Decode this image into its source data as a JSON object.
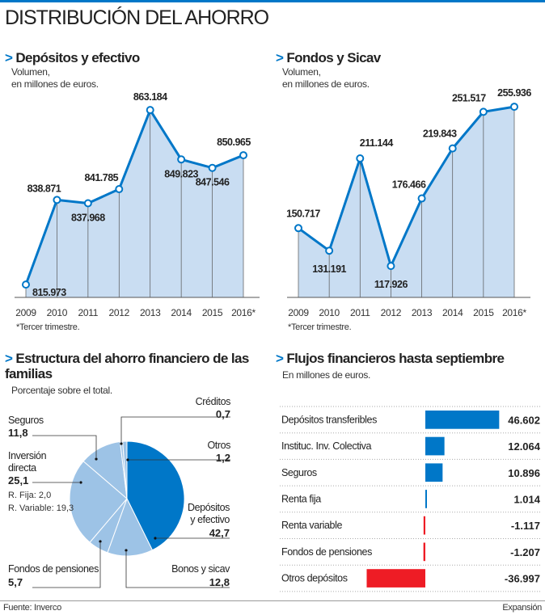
{
  "title": "DISTRIBUCIÓN DEL AHORRO",
  "accent": "#0077c8",
  "footer": {
    "source_label": "Fuente:",
    "source": "Inverco",
    "brand": "Expansión"
  },
  "chart_data": [
    {
      "type": "area",
      "title": "Depósitos y efectivo",
      "subtitle": [
        "Volumen,",
        "en millones de euros."
      ],
      "categories": [
        "2009",
        "2010",
        "2011",
        "2012",
        "2013",
        "2014",
        "2015",
        "2016*"
      ],
      "values": [
        815.973,
        838.871,
        837.968,
        841.785,
        863.184,
        849.823,
        847.546,
        850.965
      ],
      "labels": [
        "815.973",
        "838.871",
        "837.968",
        "841.785",
        "863.184",
        "849.823",
        "847.546",
        "850.965"
      ],
      "ylim": [
        812.5,
        870
      ],
      "note": "*Tercer trimestre.",
      "colors": {
        "line": "#0077c8",
        "fill": "#c9ddf2"
      }
    },
    {
      "type": "area",
      "title": "Fondos y Sicav",
      "subtitle": [
        "Volumen,",
        "en millones de euros."
      ],
      "categories": [
        "2009",
        "2010",
        "2011",
        "2012",
        "2013",
        "2014",
        "2015",
        "2016*"
      ],
      "values": [
        150.717,
        131.191,
        211.144,
        117.926,
        176.466,
        219.843,
        251.517,
        255.936
      ],
      "labels": [
        "150.717",
        "131.191",
        "211.144",
        "117.926",
        "176.466",
        "219.843",
        "251.517",
        "255.936"
      ],
      "ylim": [
        90.7,
        270
      ],
      "note": "*Tercer trimestre.",
      "colors": {
        "line": "#0077c8",
        "fill": "#c9ddf2"
      }
    },
    {
      "type": "pie",
      "title": "Estructura del ahorro financiero de las familias",
      "subtitle": "Porcentaje sobre el total.",
      "slices": [
        {
          "label": "Depósitos y efectivo",
          "value": 42.7,
          "display": "42,7",
          "color": "#0077c8"
        },
        {
          "label": "Bonos y sicav",
          "value": 12.8,
          "display": "12,8",
          "color": "#9dc3e6"
        },
        {
          "label": "Fondos de pensiones",
          "value": 5.7,
          "display": "5,7",
          "color": "#9dc3e6"
        },
        {
          "label": "Inversión directa",
          "value": 25.1,
          "display": "25,1",
          "color": "#9dc3e6",
          "detail": [
            "R. Fija: 2,0",
            "R. Variable: 19,3"
          ]
        },
        {
          "label": "Seguros",
          "value": 11.8,
          "display": "11,8",
          "color": "#9dc3e6"
        },
        {
          "label": "Créditos",
          "value": 0.7,
          "display": "0,7",
          "color": "#9dc3e6"
        },
        {
          "label": "Otros",
          "value": 1.2,
          "display": "1,2",
          "color": "#9dc3e6"
        }
      ]
    },
    {
      "type": "bar",
      "orientation": "horizontal",
      "title": "Flujos financieros hasta septiembre",
      "subtitle": "En millones de euros.",
      "categories": [
        "Depósitos transferibles",
        "Instituc. Inv. Colectiva",
        "Seguros",
        "Renta fija",
        "Renta variable",
        "Fondos de pensiones",
        "Otros depósitos"
      ],
      "values": [
        46.602,
        12.064,
        10.896,
        1.014,
        -1.117,
        -1.207,
        -36.997
      ],
      "labels": [
        "46.602",
        "12.064",
        "10.896",
        "1.014",
        "-1.117",
        "-1.207",
        "-36.997"
      ],
      "colors": {
        "positive": "#0077c8",
        "negative": "#ee1c25"
      }
    }
  ]
}
